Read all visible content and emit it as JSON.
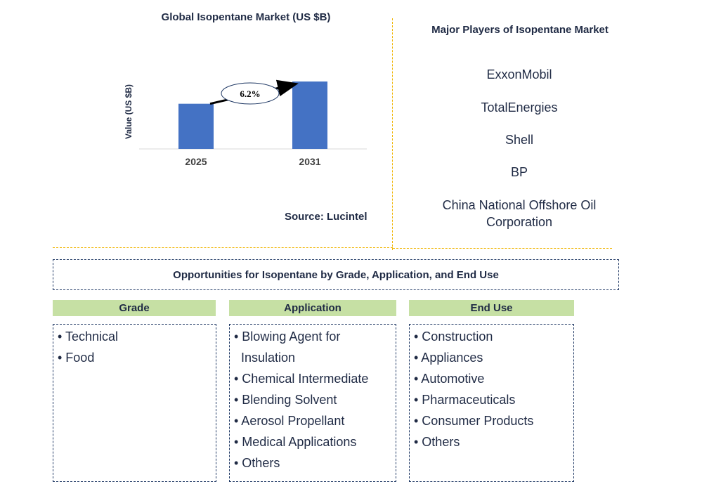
{
  "chart_data": {
    "type": "bar",
    "title": "Global Isopentane Market (US $B)",
    "ylabel": "Value (US $B)",
    "categories": [
      "2025",
      "2031"
    ],
    "values": [
      0.67,
      1.0
    ],
    "annotation": "6.2%",
    "colors": {
      "bar": "#4472c4",
      "arrow": "#000000"
    }
  },
  "source": "Source: Lucintel",
  "players": {
    "title": "Major Players of Isopentane Market",
    "items": [
      "ExxonMobil",
      "TotalEnergies",
      "Shell",
      "BP",
      "China National Offshore Oil Corporation"
    ]
  },
  "opportunities": {
    "title": "Opportunities for Isopentane by Grade, Application, and End Use",
    "columns": [
      {
        "header": "Grade",
        "items": [
          "• Technical",
          "• Food"
        ]
      },
      {
        "header": "Application",
        "items": [
          "• Blowing Agent for",
          "  Insulation",
          "• Chemical Intermediate",
          "• Blending Solvent",
          "• Aerosol Propellant",
          "• Medical Applications",
          "• Others"
        ]
      },
      {
        "header": "End Use",
        "items": [
          "• Construction",
          "• Appliances",
          "• Automotive",
          "• Pharmaceuticals",
          "• Consumer Products",
          "• Others"
        ]
      }
    ]
  }
}
